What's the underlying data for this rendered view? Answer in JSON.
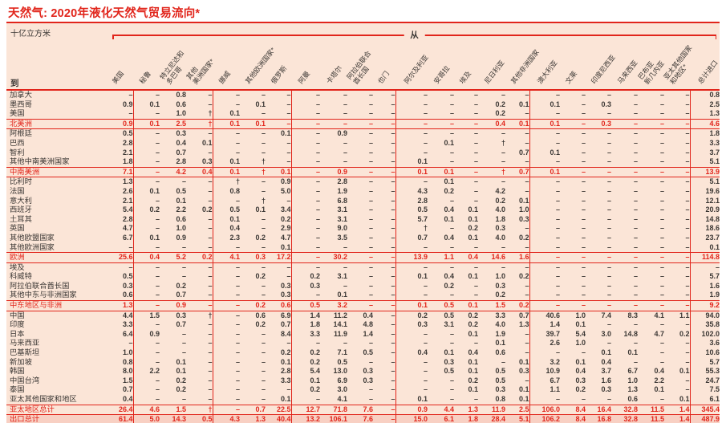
{
  "title": "天然气: 2020年液化天然气贸易流向*",
  "unit_label": "十亿立方米",
  "axis": {
    "from_label": "从",
    "to_label": "到"
  },
  "symbols": {
    "nil": "–",
    "less_than_005": "†"
  },
  "colors": {
    "accent_red": "#e1251b",
    "table_background": "#fbe5d7",
    "grand_total_row_background": "#f8d0c3",
    "text_dark": "#3b3734"
  },
  "table": {
    "columns": [
      {
        "label": "美国",
        "group_end": true
      },
      {
        "label": "秘鲁"
      },
      {
        "label": "特立尼达和\n多巴哥"
      },
      {
        "label": "其他\n美洲国家*",
        "group_end": true
      },
      {
        "label": "挪威"
      },
      {
        "label": "其他欧洲国家*"
      },
      {
        "label": "俄罗斯",
        "group_end": true
      },
      {
        "label": "阿曼"
      },
      {
        "label": "卡塔尔"
      },
      {
        "label": "阿拉伯联合\n酋长国"
      },
      {
        "label": "也门",
        "group_end": true
      },
      {
        "label": "阿尔及利亚"
      },
      {
        "label": "安哥拉"
      },
      {
        "label": "埃及"
      },
      {
        "label": "尼日利亚"
      },
      {
        "label": "其他非洲国家",
        "group_end": true
      },
      {
        "label": "澳大利亚"
      },
      {
        "label": "文莱"
      },
      {
        "label": "印度尼西亚"
      },
      {
        "label": "马来西亚"
      },
      {
        "label": "巴布亚\n新几内亚"
      },
      {
        "label": "亚太其他国家\n和地区*",
        "group_end": true
      },
      {
        "label": "总计进口"
      }
    ],
    "rows": [
      {
        "label": "加拿大",
        "type": "data",
        "values": [
          "–",
          "–",
          "0.8",
          "–",
          "–",
          "–",
          "–",
          "–",
          "–",
          "–",
          "–",
          "–",
          "–",
          "–",
          "–",
          "–",
          "–",
          "–",
          "–",
          "–",
          "–",
          "–",
          "0.8"
        ]
      },
      {
        "label": "墨西哥",
        "type": "data",
        "values": [
          "0.9",
          "0.1",
          "0.6",
          "–",
          "–",
          "0.1",
          "–",
          "–",
          "–",
          "–",
          "–",
          "–",
          "–",
          "–",
          "0.2",
          "0.1",
          "0.1",
          "–",
          "0.3",
          "–",
          "–",
          "–",
          "2.5"
        ]
      },
      {
        "label": "美国",
        "type": "data",
        "values": [
          "–",
          "–",
          "1.0",
          "†",
          "0.1",
          "–",
          "–",
          "–",
          "–",
          "–",
          "–",
          "–",
          "–",
          "–",
          "0.2",
          "–",
          "–",
          "–",
          "–",
          "–",
          "–",
          "–",
          "1.3"
        ]
      },
      {
        "label": "北美洲",
        "type": "subtotal",
        "values": [
          "0.9",
          "0.1",
          "2.5",
          "†",
          "0.1",
          "0.1",
          "–",
          "–",
          "–",
          "–",
          "–",
          "–",
          "–",
          "–",
          "0.4",
          "0.1",
          "0.1",
          "–",
          "0.3",
          "–",
          "–",
          "–",
          "4.6"
        ]
      },
      {
        "label": "阿根廷",
        "type": "data",
        "values": [
          "0.5",
          "–",
          "0.3",
          "–",
          "–",
          "–",
          "0.1",
          "–",
          "0.9",
          "–",
          "–",
          "–",
          "–",
          "–",
          "–",
          "–",
          "–",
          "–",
          "–",
          "–",
          "–",
          "–",
          "1.8"
        ]
      },
      {
        "label": "巴西",
        "type": "data",
        "values": [
          "2.8",
          "–",
          "0.4",
          "0.1",
          "–",
          "–",
          "–",
          "–",
          "–",
          "–",
          "–",
          "–",
          "0.1",
          "–",
          "†",
          "–",
          "–",
          "–",
          "–",
          "–",
          "–",
          "–",
          "3.3"
        ]
      },
      {
        "label": "智利",
        "type": "data",
        "values": [
          "2.1",
          "–",
          "0.7",
          "–",
          "–",
          "–",
          "–",
          "–",
          "–",
          "–",
          "–",
          "–",
          "–",
          "–",
          "–",
          "0.7",
          "0.1",
          "–",
          "–",
          "–",
          "–",
          "–",
          "3.7"
        ]
      },
      {
        "label": "其他中南美洲国家",
        "type": "data",
        "values": [
          "1.8",
          "–",
          "2.8",
          "0.3",
          "0.1",
          "†",
          "–",
          "–",
          "–",
          "–",
          "–",
          "0.1",
          "–",
          "–",
          "–",
          "–",
          "–",
          "–",
          "–",
          "–",
          "–",
          "–",
          "5.1"
        ]
      },
      {
        "label": "中南美洲",
        "type": "subtotal",
        "values": [
          "7.1",
          "–",
          "4.2",
          "0.4",
          "0.1",
          "†",
          "0.1",
          "–",
          "0.9",
          "–",
          "–",
          "0.1",
          "0.1",
          "–",
          "†",
          "0.7",
          "0.1",
          "–",
          "–",
          "–",
          "–",
          "–",
          "13.9"
        ]
      },
      {
        "label": "比利时",
        "type": "data",
        "values": [
          "1.3",
          "–",
          "–",
          "–",
          "†",
          "–",
          "0.9",
          "–",
          "2.8",
          "–",
          "–",
          "–",
          "0.1",
          "–",
          "–",
          "–",
          "–",
          "–",
          "–",
          "–",
          "–",
          "–",
          "5.1"
        ]
      },
      {
        "label": "法国",
        "type": "data",
        "values": [
          "2.6",
          "0.1",
          "0.5",
          "–",
          "0.8",
          "–",
          "5.0",
          "–",
          "1.9",
          "–",
          "–",
          "4.3",
          "0.2",
          "–",
          "4.2",
          "–",
          "–",
          "–",
          "–",
          "–",
          "–",
          "–",
          "19.6"
        ]
      },
      {
        "label": "意大利",
        "type": "data",
        "values": [
          "2.1",
          "–",
          "0.1",
          "–",
          "–",
          "†",
          "–",
          "–",
          "6.8",
          "–",
          "–",
          "2.8",
          "–",
          "–",
          "0.2",
          "0.1",
          "–",
          "–",
          "–",
          "–",
          "–",
          "–",
          "12.1"
        ]
      },
      {
        "label": "西班牙",
        "type": "data",
        "values": [
          "5.4",
          "0.2",
          "2.2",
          "0.2",
          "0.5",
          "0.1",
          "3.4",
          "–",
          "3.1",
          "–",
          "–",
          "0.5",
          "0.4",
          "0.1",
          "4.0",
          "1.0",
          "–",
          "–",
          "–",
          "–",
          "–",
          "–",
          "20.9"
        ]
      },
      {
        "label": "土耳其",
        "type": "data",
        "values": [
          "2.8",
          "–",
          "0.6",
          "–",
          "0.1",
          "–",
          "0.2",
          "–",
          "3.1",
          "–",
          "–",
          "5.7",
          "0.1",
          "0.1",
          "1.8",
          "0.3",
          "–",
          "–",
          "–",
          "–",
          "–",
          "–",
          "14.8"
        ]
      },
      {
        "label": "英国",
        "type": "data",
        "values": [
          "4.7",
          "–",
          "1.0",
          "–",
          "0.4",
          "–",
          "2.9",
          "–",
          "9.0",
          "–",
          "–",
          "†",
          "–",
          "0.2",
          "0.3",
          "–",
          "–",
          "–",
          "–",
          "–",
          "–",
          "–",
          "18.6"
        ]
      },
      {
        "label": "其他欧盟国家",
        "type": "data",
        "values": [
          "6.7",
          "0.1",
          "0.9",
          "–",
          "2.3",
          "0.2",
          "4.7",
          "–",
          "3.5",
          "–",
          "–",
          "0.7",
          "0.4",
          "0.1",
          "4.0",
          "0.2",
          "–",
          "–",
          "–",
          "–",
          "–",
          "–",
          "23.7"
        ]
      },
      {
        "label": "其他欧洲国家",
        "type": "data",
        "values": [
          "–",
          "–",
          "–",
          "–",
          "–",
          "–",
          "0.1",
          "–",
          "–",
          "–",
          "–",
          "–",
          "–",
          "–",
          "–",
          "–",
          "–",
          "–",
          "–",
          "–",
          "–",
          "–",
          "0.1"
        ]
      },
      {
        "label": "欧洲",
        "type": "subtotal",
        "values": [
          "25.6",
          "0.4",
          "5.2",
          "0.2",
          "4.1",
          "0.3",
          "17.2",
          "–",
          "30.2",
          "–",
          "–",
          "13.9",
          "1.1",
          "0.4",
          "14.6",
          "1.6",
          "–",
          "–",
          "–",
          "–",
          "–",
          "–",
          "114.8"
        ]
      },
      {
        "label": "埃及",
        "type": "data",
        "values": [
          "–",
          "–",
          "–",
          "–",
          "–",
          "–",
          "–",
          "–",
          "–",
          "–",
          "–",
          "–",
          "–",
          "–",
          "–",
          "–",
          "–",
          "–",
          "–",
          "–",
          "–",
          "–",
          "–"
        ]
      },
      {
        "label": "科威特",
        "type": "data",
        "values": [
          "0.5",
          "–",
          "–",
          "–",
          "–",
          "0.2",
          "–",
          "0.2",
          "3.1",
          "–",
          "–",
          "0.1",
          "0.4",
          "0.1",
          "1.0",
          "0.2",
          "–",
          "–",
          "–",
          "–",
          "–",
          "–",
          "5.7"
        ]
      },
      {
        "label": "阿拉伯联合酋长国",
        "type": "data",
        "values": [
          "0.3",
          "–",
          "0.2",
          "–",
          "–",
          "–",
          "0.3",
          "0.3",
          "–",
          "–",
          "–",
          "–",
          "0.2",
          "–",
          "0.3",
          "–",
          "–",
          "–",
          "–",
          "–",
          "–",
          "–",
          "1.6"
        ]
      },
      {
        "label": "其他中东与非洲国家",
        "type": "data",
        "values": [
          "0.6",
          "–",
          "0.7",
          "–",
          "–",
          "–",
          "0.3",
          "–",
          "0.1",
          "–",
          "–",
          "–",
          "–",
          "–",
          "0.2",
          "–",
          "–",
          "–",
          "–",
          "–",
          "–",
          "–",
          "1.9"
        ]
      },
      {
        "label": "中东地区与非洲",
        "type": "subtotal",
        "values": [
          "1.3",
          "–",
          "0.9",
          "–",
          "–",
          "0.2",
          "0.6",
          "0.5",
          "3.2",
          "–",
          "–",
          "0.1",
          "0.5",
          "0.1",
          "1.5",
          "0.2",
          "–",
          "–",
          "–",
          "–",
          "–",
          "–",
          "9.2"
        ]
      },
      {
        "label": "中国",
        "type": "data",
        "values": [
          "4.4",
          "1.5",
          "0.3",
          "†",
          "–",
          "0.6",
          "6.9",
          "1.4",
          "11.2",
          "0.4",
          "–",
          "0.2",
          "0.5",
          "0.2",
          "3.3",
          "0.7",
          "40.6",
          "1.0",
          "7.4",
          "8.3",
          "4.1",
          "1.1",
          "94.0"
        ]
      },
      {
        "label": "印度",
        "type": "data",
        "values": [
          "3.3",
          "–",
          "0.7",
          "–",
          "–",
          "0.2",
          "0.7",
          "1.8",
          "14.1",
          "4.8",
          "–",
          "0.3",
          "3.1",
          "0.2",
          "4.0",
          "1.3",
          "1.4",
          "0.1",
          "–",
          "–",
          "–",
          "–",
          "35.8"
        ]
      },
      {
        "label": "日本",
        "type": "data",
        "values": [
          "6.4",
          "0.9",
          "–",
          "–",
          "–",
          "–",
          "8.4",
          "3.3",
          "11.9",
          "1.4",
          "–",
          "–",
          "–",
          "0.1",
          "1.9",
          "–",
          "39.7",
          "5.4",
          "3.0",
          "14.8",
          "4.7",
          "0.2",
          "102.0"
        ]
      },
      {
        "label": "马来西亚",
        "type": "data",
        "values": [
          "–",
          "–",
          "–",
          "–",
          "–",
          "–",
          "–",
          "–",
          "–",
          "–",
          "–",
          "–",
          "–",
          "–",
          "0.1",
          "–",
          "2.6",
          "1.0",
          "–",
          "–",
          "–",
          "–",
          "3.6"
        ]
      },
      {
        "label": "巴基斯坦",
        "type": "data",
        "values": [
          "1.0",
          "–",
          "–",
          "–",
          "–",
          "–",
          "0.2",
          "0.2",
          "7.1",
          "0.5",
          "–",
          "0.4",
          "0.1",
          "0.4",
          "0.6",
          "–",
          "–",
          "–",
          "0.1",
          "0.1",
          "–",
          "–",
          "10.6"
        ]
      },
      {
        "label": "新加坡",
        "type": "data",
        "values": [
          "0.8",
          "–",
          "0.1",
          "–",
          "–",
          "–",
          "0.1",
          "0.2",
          "0.5",
          "–",
          "–",
          "–",
          "0.3",
          "0.1",
          "–",
          "0.1",
          "3.2",
          "0.1",
          "0.4",
          "–",
          "–",
          "–",
          "5.7"
        ]
      },
      {
        "label": "韩国",
        "type": "data",
        "values": [
          "8.0",
          "2.2",
          "0.1",
          "–",
          "–",
          "–",
          "2.8",
          "5.4",
          "13.0",
          "0.3",
          "–",
          "–",
          "0.5",
          "0.1",
          "0.5",
          "0.3",
          "10.9",
          "0.4",
          "3.7",
          "6.7",
          "0.4",
          "0.1",
          "55.3"
        ]
      },
      {
        "label": "中国台湾",
        "type": "data",
        "values": [
          "1.5",
          "–",
          "0.2",
          "–",
          "–",
          "–",
          "3.3",
          "0.1",
          "6.9",
          "0.3",
          "–",
          "–",
          "–",
          "0.2",
          "0.5",
          "–",
          "6.7",
          "0.3",
          "1.6",
          "1.0",
          "2.2",
          "–",
          "24.7"
        ]
      },
      {
        "label": "泰国",
        "type": "data",
        "values": [
          "0.7",
          "–",
          "0.2",
          "–",
          "–",
          "–",
          "–",
          "0.2",
          "3.0",
          "–",
          "–",
          "–",
          "–",
          "0.1",
          "0.3",
          "0.1",
          "1.1",
          "0.2",
          "0.3",
          "1.3",
          "0.1",
          "–",
          "7.5"
        ]
      },
      {
        "label": "亚太其他国家和地区",
        "type": "data",
        "values": [
          "0.4",
          "–",
          "–",
          "–",
          "–",
          "–",
          "0.1",
          "–",
          "4.1",
          "–",
          "–",
          "0.1",
          "–",
          "–",
          "0.8",
          "0.1",
          "–",
          "–",
          "–",
          "0.6",
          "–",
          "0.1",
          "6.1"
        ]
      },
      {
        "label": "亚太地区总计",
        "type": "subtotal",
        "values": [
          "26.4",
          "4.6",
          "1.5",
          "†",
          "–",
          "0.7",
          "22.5",
          "12.7",
          "71.8",
          "7.6",
          "–",
          "0.9",
          "4.4",
          "1.3",
          "11.9",
          "2.5",
          "106.0",
          "8.4",
          "16.4",
          "32.8",
          "11.5",
          "1.4",
          "345.4"
        ]
      },
      {
        "label": "出口总计",
        "type": "grand",
        "values": [
          "61.4",
          "5.0",
          "14.3",
          "0.5",
          "4.3",
          "1.3",
          "40.4",
          "13.2",
          "106.1",
          "7.6",
          "–",
          "15.0",
          "6.1",
          "1.8",
          "28.4",
          "5.1",
          "106.2",
          "8.4",
          "16.8",
          "32.8",
          "11.5",
          "1.4",
          "487.9"
        ]
      }
    ]
  }
}
